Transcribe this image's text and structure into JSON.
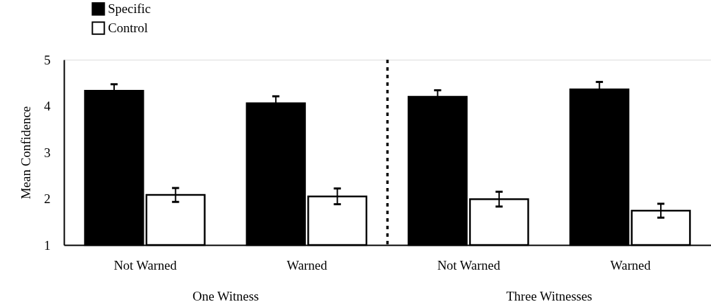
{
  "chart_data": {
    "type": "bar",
    "ylabel": "Mean Confidence",
    "categories": [
      "Not Warned",
      "Warned",
      "Not Warned",
      "Warned"
    ],
    "series": [
      {
        "name": "Specific",
        "color": "#000000",
        "values": [
          4.33,
          4.06,
          4.2,
          4.36
        ],
        "errors": [
          0.14,
          0.15,
          0.14,
          0.16
        ]
      },
      {
        "name": "Control",
        "color": "#ffffff",
        "values": [
          2.08,
          2.05,
          1.99,
          1.74
        ],
        "errors": [
          0.15,
          0.17,
          0.16,
          0.15
        ]
      }
    ],
    "ylim": [
      1,
      5
    ],
    "yticks": [
      1,
      2,
      3,
      4,
      5
    ],
    "grid": false,
    "legend": "top left",
    "annotations": [
      "One Witness",
      "Three Witnesses"
    ]
  }
}
